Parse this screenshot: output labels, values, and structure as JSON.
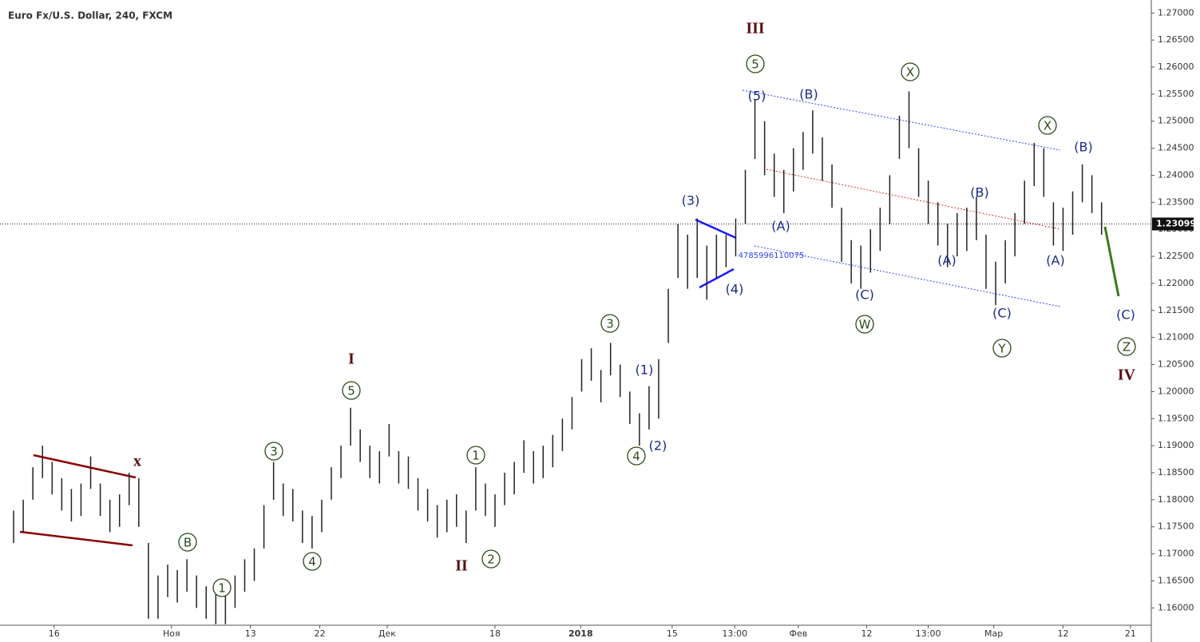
{
  "chart_data": {
    "type": "ohlc",
    "title": "Euro Fx/U.S. Dollar, 240, FXCM",
    "high": [
      1.178,
      1.18,
      1.186,
      1.19,
      1.187,
      1.184,
      1.182,
      1.183,
      1.188,
      1.183,
      1.18,
      1.181,
      1.185,
      1.184,
      1.172,
      1.166,
      1.168,
      1.167,
      1.169,
      1.166,
      1.164,
      1.163,
      1.163,
      1.166,
      1.169,
      1.171,
      1.179,
      1.187,
      1.183,
      1.182,
      1.178,
      1.177,
      1.18,
      1.186,
      1.19,
      1.197,
      1.193,
      1.19,
      1.189,
      1.194,
      1.189,
      1.188,
      1.184,
      1.182,
      1.179,
      1.18,
      1.181,
      1.178,
      1.186,
      1.183,
      1.181,
      1.185,
      1.187,
      1.191,
      1.189,
      1.19,
      1.192,
      1.195,
      1.199,
      1.206,
      1.208,
      1.204,
      1.209,
      1.205,
      1.2,
      1.196,
      1.201,
      1.206,
      1.219,
      1.231,
      1.229,
      1.232,
      1.227,
      1.229,
      1.229,
      1.232,
      1.241,
      1.254,
      1.25,
      1.244,
      1.241,
      1.245,
      1.248,
      1.252,
      1.247,
      1.242,
      1.234,
      1.228,
      1.227,
      1.23,
      1.234,
      1.24,
      1.251,
      1.2555,
      1.245,
      1.239,
      1.235,
      1.231,
      1.233,
      1.234,
      1.236,
      1.229,
      1.224,
      1.228,
      1.233,
      1.239,
      1.246,
      1.245,
      1.235,
      1.234,
      1.237,
      1.242,
      1.24,
      1.235
    ],
    "low": [
      1.172,
      1.174,
      1.18,
      1.184,
      1.181,
      1.178,
      1.176,
      1.177,
      1.182,
      1.177,
      1.174,
      1.175,
      1.179,
      1.175,
      1.158,
      1.158,
      1.162,
      1.161,
      1.163,
      1.16,
      1.158,
      1.157,
      1.157,
      1.16,
      1.163,
      1.165,
      1.171,
      1.18,
      1.177,
      1.176,
      1.172,
      1.171,
      1.174,
      1.18,
      1.184,
      1.19,
      1.187,
      1.184,
      1.183,
      1.188,
      1.183,
      1.182,
      1.178,
      1.176,
      1.173,
      1.174,
      1.175,
      1.172,
      1.178,
      1.177,
      1.175,
      1.179,
      1.181,
      1.185,
      1.183,
      1.184,
      1.186,
      1.189,
      1.193,
      1.2,
      1.202,
      1.198,
      1.203,
      1.199,
      1.194,
      1.19,
      1.193,
      1.195,
      1.209,
      1.221,
      1.219,
      1.221,
      1.217,
      1.221,
      1.223,
      1.225,
      1.231,
      1.243,
      1.24,
      1.236,
      1.233,
      1.237,
      1.241,
      1.244,
      1.239,
      1.234,
      1.224,
      1.22,
      1.219,
      1.222,
      1.226,
      1.231,
      1.243,
      1.245,
      1.236,
      1.231,
      1.227,
      1.223,
      1.225,
      1.226,
      1.228,
      1.219,
      1.216,
      1.22,
      1.225,
      1.231,
      1.238,
      1.236,
      1.227,
      1.226,
      1.229,
      1.235,
      1.233,
      1.229
    ],
    "color": "#222222",
    "xlim": [
      -1,
      118
    ],
    "xticks": [
      {
        "value": 4.2,
        "label": "16"
      },
      {
        "value": 16.4,
        "label": "Ноя"
      },
      {
        "value": 24.6,
        "label": "13"
      },
      {
        "value": 31.8,
        "label": "22"
      },
      {
        "value": 38.8,
        "label": "Дек"
      },
      {
        "value": 50,
        "label": "18"
      },
      {
        "value": 58.9,
        "label": "2018"
      },
      {
        "value": 68.4,
        "label": "15"
      },
      {
        "value": 74.9,
        "label": "13:00"
      },
      {
        "value": 81.5,
        "label": "Фев"
      },
      {
        "value": 88.6,
        "label": "12"
      },
      {
        "value": 95,
        "label": "13:00"
      },
      {
        "value": 101.8,
        "label": "Мар"
      },
      {
        "value": 109,
        "label": "12"
      },
      {
        "value": 116,
        "label": "21"
      }
    ],
    "ylim": [
      1.1568,
      1.2724
    ],
    "yticks": [
      {
        "value": 1.16,
        "label": "1.16000"
      },
      {
        "value": 1.165,
        "label": "1.16500"
      },
      {
        "value": 1.17,
        "label": "1.17000"
      },
      {
        "value": 1.175,
        "label": "1.17500"
      },
      {
        "value": 1.18,
        "label": "1.18000"
      },
      {
        "value": 1.185,
        "label": "1.18500"
      },
      {
        "value": 1.19,
        "label": "1.19000"
      },
      {
        "value": 1.195,
        "label": "1.19500"
      },
      {
        "value": 1.2,
        "label": "1.20000"
      },
      {
        "value": 1.205,
        "label": "1.20500"
      },
      {
        "value": 1.21,
        "label": "1.21000"
      },
      {
        "value": 1.215,
        "label": "1.21500"
      },
      {
        "value": 1.22,
        "label": "1.22000"
      },
      {
        "value": 1.225,
        "label": "1.22500"
      },
      {
        "value": 1.23,
        "label": "1.23000"
      },
      {
        "value": 1.235,
        "label": "1.23500"
      },
      {
        "value": 1.24,
        "label": "1.24000"
      },
      {
        "value": 1.245,
        "label": "1.24500"
      },
      {
        "value": 1.25,
        "label": "1.25000"
      },
      {
        "value": 1.255,
        "label": "1.25500"
      },
      {
        "value": 1.26,
        "label": "1.26000"
      },
      {
        "value": 1.265,
        "label": "1.26500"
      },
      {
        "value": 1.27,
        "label": "1.27000"
      }
    ],
    "last_price": 1.23099,
    "annotations": [
      "III",
      "5",
      "(5)",
      "(B)",
      "X",
      "X",
      "(B)",
      "(3)",
      "(A)",
      "(4)",
      "(B)",
      "(A)",
      "(A)",
      "(C)",
      "W",
      "(C)",
      "Y",
      "(C)",
      "Z",
      "IV",
      "3",
      "(1)",
      "(2)",
      "4",
      "I",
      "5",
      "3",
      "1",
      "II",
      "2",
      "4",
      "B",
      "1",
      "x",
      "4785996110075"
    ]
  }
}
